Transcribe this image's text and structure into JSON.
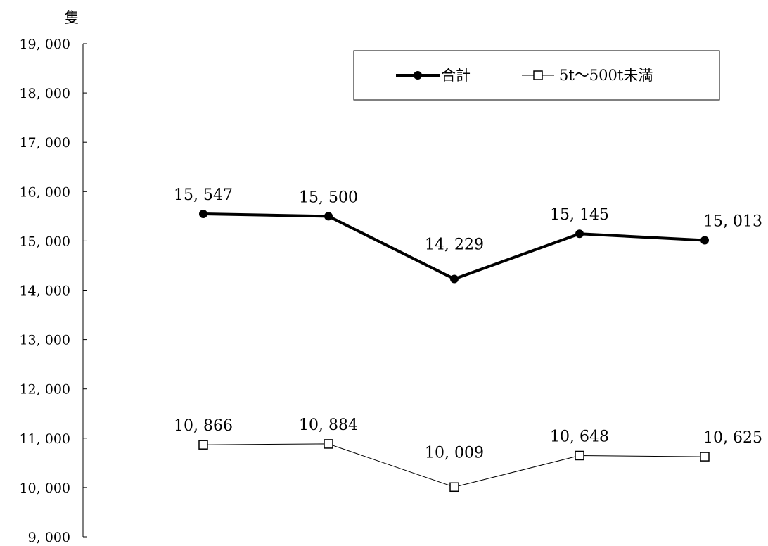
{
  "chart_data": {
    "type": "line",
    "x": [
      "",
      "",
      "",
      "",
      ""
    ],
    "ylabel": "隻",
    "ylim": [
      9000,
      19000
    ],
    "yticks": [
      9000,
      10000,
      11000,
      12000,
      13000,
      14000,
      15000,
      16000,
      17000,
      18000,
      19000
    ],
    "ytick_labels": [
      "9, 000",
      "10, 000",
      "11, 000",
      "12, 000",
      "13, 000",
      "14, 000",
      "15, 000",
      "16, 000",
      "17, 000",
      "18, 000",
      "19, 000"
    ],
    "grid": false,
    "legend_position": "top-right",
    "series": [
      {
        "name": "合計",
        "values": [
          15547,
          15500,
          14229,
          15145,
          15013
        ],
        "labels": [
          "15, 547",
          "15, 500",
          "14, 229",
          "15, 145",
          "15, 013"
        ],
        "marker": "filled-circle",
        "color": "#000000"
      },
      {
        "name": "5t～500t未満",
        "values": [
          10866,
          10884,
          10009,
          10648,
          10625
        ],
        "labels": [
          "10, 866",
          "10, 884",
          "10, 009",
          "10, 648",
          "10, 625"
        ],
        "marker": "open-square",
        "color": "#000000"
      }
    ]
  }
}
